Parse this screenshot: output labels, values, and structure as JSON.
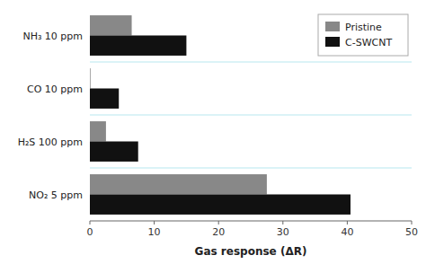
{
  "chart_data": {
    "type": "bar",
    "orientation": "horizontal",
    "categories": [
      "NH₃ 10 ppm",
      "CO 10 ppm",
      "H₂S 100 ppm",
      "NO₂ 5 ppm"
    ],
    "series": [
      {
        "name": "Pristine",
        "color": "#888888",
        "values": [
          6.5,
          0.1,
          2.5,
          27.5
        ]
      },
      {
        "name": "C-SWCNT",
        "color": "#111111",
        "values": [
          15.0,
          4.5,
          7.5,
          40.5
        ]
      }
    ],
    "xlabel": "Gas response (ΔR)",
    "xlim": [
      0,
      50
    ],
    "xticks": [
      0,
      10,
      20,
      30,
      40,
      50
    ],
    "legend": "upper right"
  }
}
